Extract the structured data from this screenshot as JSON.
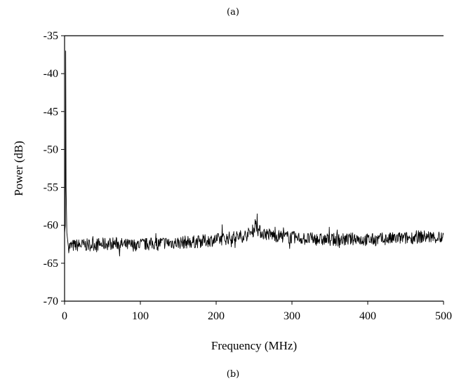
{
  "captions": {
    "top": "(a)",
    "bottom": "(b)"
  },
  "chart_data": {
    "type": "line",
    "title": "",
    "xlabel": "Frequency (MHz)",
    "ylabel": "Power (dB)",
    "xlim": [
      0,
      500
    ],
    "ylim": [
      -70,
      -35
    ],
    "xticks": [
      0,
      100,
      200,
      300,
      400,
      500
    ],
    "yticks": [
      -35,
      -40,
      -45,
      -50,
      -55,
      -60,
      -65,
      -70
    ],
    "grid": false,
    "legend": "none",
    "line_color": "#000000",
    "series": [
      {
        "x": [
          0,
          1,
          1.5,
          2,
          3,
          5,
          10,
          20,
          30,
          40,
          50,
          60,
          70,
          80,
          90,
          100,
          110,
          120,
          130,
          140,
          150,
          160,
          170,
          180,
          190,
          200,
          210,
          220,
          230,
          240,
          245,
          250,
          252,
          255,
          260,
          270,
          280,
          290,
          300,
          310,
          320,
          330,
          340,
          350,
          360,
          370,
          380,
          385,
          390,
          400,
          410,
          420,
          430,
          440,
          450,
          460,
          470,
          480,
          490,
          500
        ],
        "y": [
          -61,
          -60,
          -37,
          -55,
          -61,
          -62.8,
          -62.7,
          -62.6,
          -62.6,
          -62.5,
          -62.5,
          -62.4,
          -62.4,
          -62.6,
          -62.6,
          -62.5,
          -62.5,
          -62.4,
          -62.3,
          -62.3,
          -62.3,
          -62.2,
          -62.2,
          -62.1,
          -62.0,
          -61.9,
          -61.8,
          -61.6,
          -61.5,
          -61.3,
          -61.0,
          -60.6,
          -59.5,
          -60.6,
          -61.0,
          -61.2,
          -61.4,
          -61.5,
          -61.6,
          -61.7,
          -61.8,
          -61.8,
          -61.9,
          -61.9,
          -61.9,
          -61.9,
          -61.8,
          -61.6,
          -61.9,
          -61.9,
          -61.9,
          -61.8,
          -61.8,
          -61.7,
          -61.7,
          -61.6,
          -61.5,
          -61.5,
          -61.6,
          -61.7
        ]
      }
    ]
  }
}
